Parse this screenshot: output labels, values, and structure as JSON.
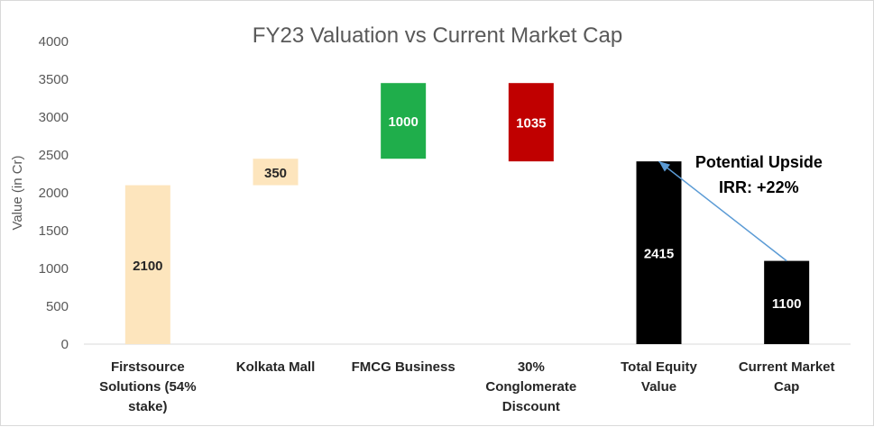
{
  "chart_data": {
    "type": "bar",
    "subtype": "waterfall",
    "title": "FY23 Valuation vs Current Market Cap",
    "xlabel": "",
    "ylabel": "Value (in Cr)",
    "ylim": [
      0,
      4000
    ],
    "yticks": [
      0,
      500,
      1000,
      1500,
      2000,
      2500,
      3000,
      3500,
      4000
    ],
    "grid": false,
    "legend": "none",
    "categories": [
      [
        "Firstsource",
        "Solutions (54%",
        "stake)"
      ],
      [
        "Kolkata Mall"
      ],
      [
        "FMCG Business"
      ],
      [
        "30%",
        "Conglomerate",
        "Discount"
      ],
      [
        "Total Equity",
        "Value"
      ],
      [
        "Current Market",
        "Cap"
      ]
    ],
    "bars": [
      {
        "start": 0,
        "end": 2100,
        "label": "2100",
        "color": "#fde5bd",
        "label_color": "#262626"
      },
      {
        "start": 2100,
        "end": 2450,
        "label": "350",
        "color": "#fde5bd",
        "label_color": "#262626"
      },
      {
        "start": 2450,
        "end": 3450,
        "label": "1000",
        "color": "#1fae4b",
        "label_color": "#ffffff"
      },
      {
        "start": 2415,
        "end": 3450,
        "label": "1035",
        "color": "#c00000",
        "label_color": "#ffffff"
      },
      {
        "start": 0,
        "end": 2415,
        "label": "2415",
        "color": "#000000",
        "label_color": "#ffffff"
      },
      {
        "start": 0,
        "end": 1100,
        "label": "1100",
        "color": "#000000",
        "label_color": "#ffffff"
      }
    ],
    "annotation": {
      "lines": [
        "Potential Upside",
        "IRR: +22%"
      ],
      "arrow_from_bar": 5,
      "arrow_to_bar": 4,
      "arrow_color": "#5b9bd5"
    }
  }
}
